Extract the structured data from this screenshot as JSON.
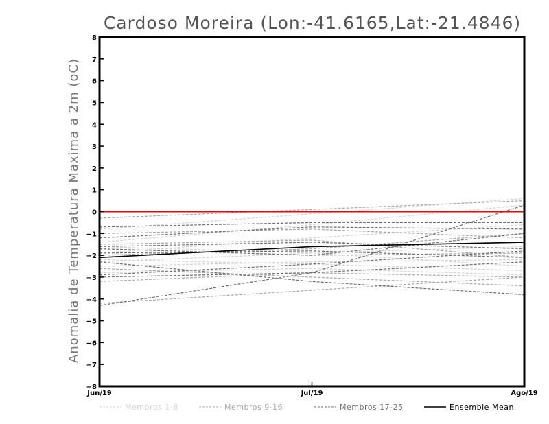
{
  "chart_data": {
    "type": "line",
    "title": "Cardoso Moreira (Lon:-41.6165,Lat:-21.4846)",
    "ylabel": "Anomalia de Temperatura Maxima a 2m (oC)",
    "xlabel": "",
    "categories": [
      "Jun/19",
      "Jul/19",
      "Ago/19"
    ],
    "ylim": [
      -8,
      8
    ],
    "yticks": [
      8,
      7,
      6,
      5,
      4,
      3,
      2,
      1,
      0,
      -1,
      -2,
      -3,
      -4,
      -5,
      -6,
      -7,
      -8
    ],
    "reference_line": {
      "value": 0,
      "color": "#ff0000"
    },
    "groups": [
      {
        "name": "Membros 1-8",
        "color": "#d3d3d3",
        "dashed": true
      },
      {
        "name": "Membros 9-16",
        "color": "#a8a8a8",
        "dashed": true
      },
      {
        "name": "Membros 17-25",
        "color": "#6f6f6f",
        "dashed": true
      },
      {
        "name": "Ensemble Mean",
        "color": "#000000",
        "dashed": false
      }
    ],
    "series": [
      {
        "name": "m1",
        "group": 0,
        "values": [
          -0.8,
          -0.1,
          0.6
        ]
      },
      {
        "name": "m2",
        "group": 0,
        "values": [
          -1.4,
          -0.6,
          0.3
        ]
      },
      {
        "name": "m3",
        "group": 0,
        "values": [
          -1.9,
          -1.2,
          -0.6
        ]
      },
      {
        "name": "m4",
        "group": 0,
        "values": [
          -2.3,
          -1.9,
          -1.6
        ]
      },
      {
        "name": "m5",
        "group": 0,
        "values": [
          -2.5,
          -2.3,
          -2.2
        ]
      },
      {
        "name": "m6",
        "group": 0,
        "values": [
          -2.8,
          -2.6,
          -2.9
        ]
      },
      {
        "name": "m7",
        "group": 0,
        "values": [
          -2.2,
          -2.4,
          -2.7
        ]
      },
      {
        "name": "m8",
        "group": 0,
        "values": [
          -1.6,
          -1.9,
          -2.5
        ]
      },
      {
        "name": "m9",
        "group": 1,
        "values": [
          -0.3,
          0.1,
          0.5
        ]
      },
      {
        "name": "m10",
        "group": 1,
        "values": [
          -1.0,
          -0.8,
          -1.2
        ]
      },
      {
        "name": "m11",
        "group": 1,
        "values": [
          -1.5,
          -1.3,
          -2.1
        ]
      },
      {
        "name": "m12",
        "group": 1,
        "values": [
          -3.2,
          -2.8,
          -3.0
        ]
      },
      {
        "name": "m13",
        "group": 1,
        "values": [
          -2.6,
          -3.0,
          -3.4
        ]
      },
      {
        "name": "m14",
        "group": 1,
        "values": [
          -4.2,
          -3.6,
          -3.0
        ]
      },
      {
        "name": "m15",
        "group": 1,
        "values": [
          -1.7,
          -2.0,
          -1.9
        ]
      },
      {
        "name": "m16",
        "group": 1,
        "values": [
          -2.0,
          -1.7,
          -1.0
        ]
      },
      {
        "name": "m17",
        "group": 2,
        "values": [
          -0.7,
          -0.5,
          -0.5
        ]
      },
      {
        "name": "m18",
        "group": 2,
        "values": [
          -1.2,
          -0.7,
          -0.8
        ]
      },
      {
        "name": "m19",
        "group": 2,
        "values": [
          -1.6,
          -1.4,
          -1.7
        ]
      },
      {
        "name": "m20",
        "group": 2,
        "values": [
          -4.3,
          -2.8,
          0.3
        ]
      },
      {
        "name": "m21",
        "group": 2,
        "values": [
          -2.3,
          -3.2,
          -3.8
        ]
      },
      {
        "name": "m22",
        "group": 2,
        "values": [
          -3.0,
          -2.8,
          -2.3
        ]
      },
      {
        "name": "m23",
        "group": 2,
        "values": [
          -1.7,
          -2.0,
          -1.0
        ]
      },
      {
        "name": "m24",
        "group": 2,
        "values": [
          -2.9,
          -2.4,
          -1.8
        ]
      },
      {
        "name": "m25",
        "group": 2,
        "values": [
          -1.9,
          -1.8,
          -2.1
        ]
      },
      {
        "name": "Ensemble Mean",
        "group": 3,
        "values": [
          -2.1,
          -1.6,
          -1.4
        ]
      }
    ]
  }
}
